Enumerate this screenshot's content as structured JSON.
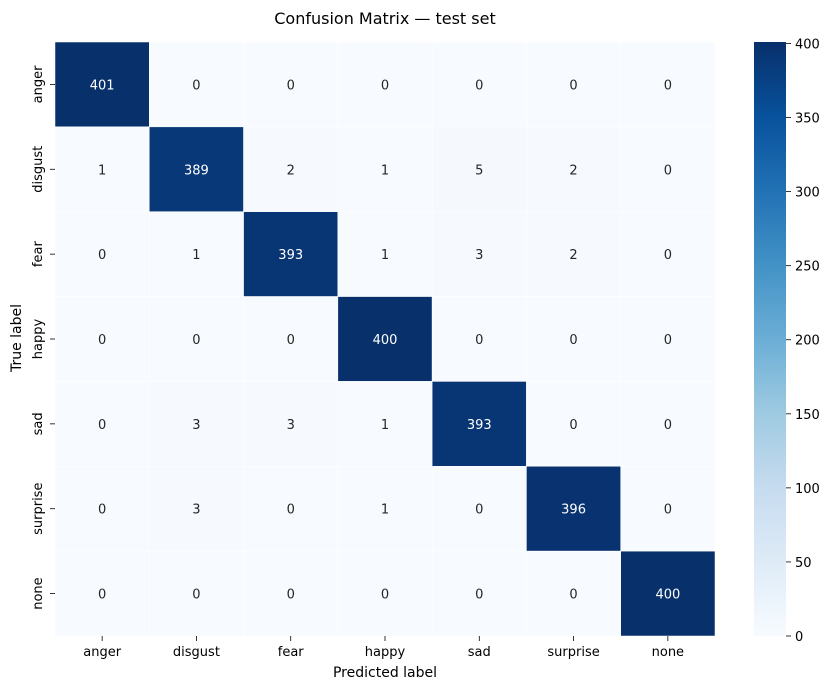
{
  "chart_data": {
    "type": "heatmap",
    "title": "Confusion Matrix — test set",
    "xlabel": "Predicted label",
    "ylabel": "True label",
    "x_categories": [
      "anger",
      "disgust",
      "fear",
      "happy",
      "sad",
      "surprise",
      "none"
    ],
    "y_categories": [
      "anger",
      "disgust",
      "fear",
      "happy",
      "sad",
      "surprise",
      "none"
    ],
    "values": [
      [
        401,
        0,
        0,
        0,
        0,
        0,
        0
      ],
      [
        1,
        389,
        2,
        1,
        5,
        2,
        0
      ],
      [
        0,
        1,
        393,
        1,
        3,
        2,
        0
      ],
      [
        0,
        0,
        0,
        400,
        0,
        0,
        0
      ],
      [
        0,
        3,
        3,
        1,
        393,
        0,
        0
      ],
      [
        0,
        3,
        0,
        1,
        0,
        396,
        0
      ],
      [
        0,
        0,
        0,
        0,
        0,
        0,
        400
      ]
    ],
    "colorbar": {
      "min": 0,
      "max": 401,
      "ticks": [
        0,
        50,
        100,
        150,
        200,
        250,
        300,
        350,
        400
      ],
      "colormap": "Blues"
    },
    "colors": {
      "low": "#f7fbff",
      "high": "#08306b",
      "text_dark": "#262626",
      "text_light": "#ffffff"
    }
  }
}
